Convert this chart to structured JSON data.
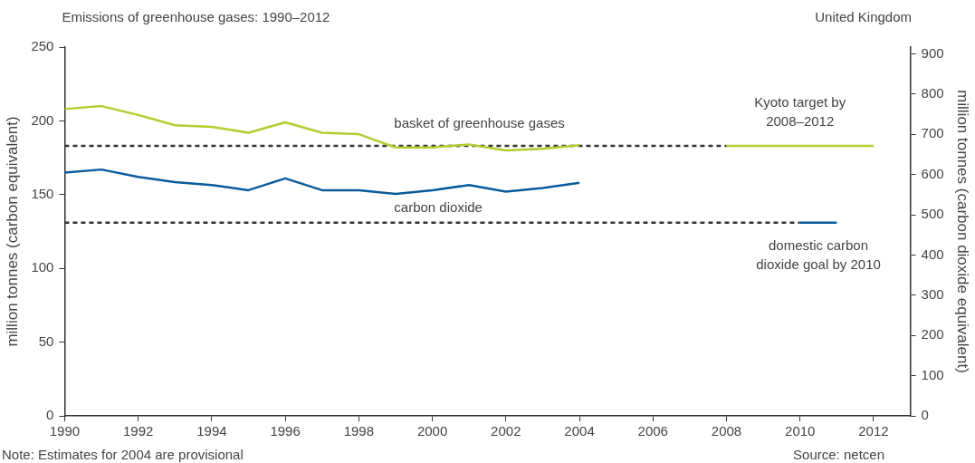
{
  "chart_data": {
    "type": "line",
    "title": "Emissions of greenhouse gases: 1990–2012",
    "subtitle": "United Kingdom",
    "ylabel": "million tonnes (carbon equivalent)",
    "y2label": "million tonnes (carbon dioxide equivalent)",
    "xlim": [
      1990,
      2013
    ],
    "xticks": [
      1990,
      1992,
      1994,
      1996,
      1998,
      2000,
      2002,
      2004,
      2006,
      2008,
      2010,
      2012
    ],
    "ylim": [
      0,
      250
    ],
    "yticks": [
      0,
      50,
      100,
      150,
      200,
      250
    ],
    "y2lim": [
      0,
      916.7
    ],
    "y2ticks": [
      0,
      100,
      200,
      300,
      400,
      500,
      600,
      700,
      800,
      900
    ],
    "grid": false,
    "legend": false,
    "marker": "none",
    "series": [
      {
        "name": "basket of greenhouse gases",
        "color": "#b5cc2e",
        "x": [
          1990,
          1991,
          1992,
          1993,
          1994,
          1995,
          1996,
          1997,
          1998,
          1999,
          2000,
          2001,
          2002,
          2003,
          2004
        ],
        "values": [
          208,
          210,
          204,
          197,
          196,
          192,
          199,
          192,
          191,
          182,
          182,
          184,
          180,
          181,
          183.5
        ]
      },
      {
        "name": "carbon dioxide",
        "color": "#0a5a9c",
        "x": [
          1990,
          1991,
          1992,
          1993,
          1994,
          1995,
          1996,
          1997,
          1998,
          1999,
          2000,
          2001,
          2002,
          2003,
          2004
        ],
        "values": [
          165,
          167,
          162,
          158.5,
          156.5,
          153,
          161,
          153,
          153,
          150.5,
          153,
          156.5,
          152,
          154.5,
          158
        ]
      },
      {
        "color": "#333333",
        "line_style": "dashed",
        "x": [
          1990,
          2008
        ],
        "values": [
          183,
          183
        ]
      },
      {
        "color": "#333333",
        "line_style": "dashed",
        "x": [
          1990,
          2010
        ],
        "values": [
          131,
          131
        ]
      },
      {
        "name": "Kyoto target by 2008–2012",
        "color": "#b5cc2e",
        "x": [
          2008,
          2012
        ],
        "values": [
          183,
          183
        ]
      },
      {
        "name": "domestic carbon dioxide goal by 2010",
        "color": "#0a5a9c",
        "x": [
          2010,
          2011
        ],
        "values": [
          131,
          131
        ]
      }
    ],
    "annotations": [
      "Note: Estimates for 2004 are provisional",
      "Source: netcen"
    ]
  }
}
